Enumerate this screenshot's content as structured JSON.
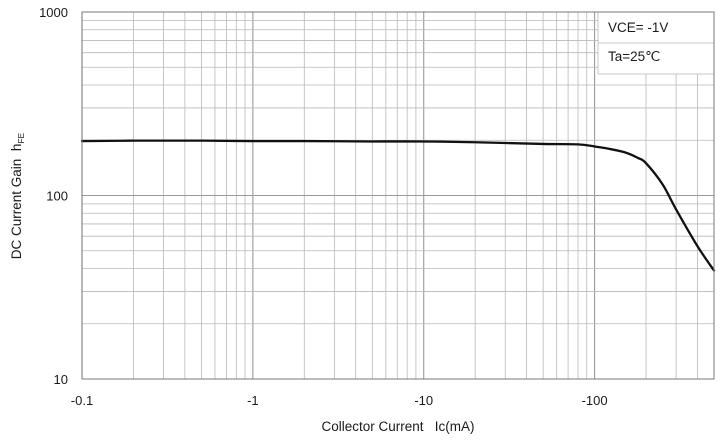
{
  "chart_data": {
    "type": "line",
    "title": "",
    "xlabel": "Collector Current",
    "xlabel_unit": "Ic(mA)",
    "ylabel": "DC Current Gain",
    "ylabel_symbol": "h",
    "ylabel_subscript": "FE",
    "x_scale": "log",
    "y_scale": "log",
    "x_direction": "negative values, magnitude increasing to the right",
    "xlim": [
      -0.1,
      -500
    ],
    "ylim": [
      10,
      1000
    ],
    "x_ticks": [
      -0.1,
      -1,
      -10,
      -100
    ],
    "x_tick_labels": [
      "-0.1",
      "-1",
      "-10",
      "-100"
    ],
    "y_ticks": [
      10,
      100,
      1000
    ],
    "y_tick_labels": [
      "10",
      "100",
      "1000"
    ],
    "grid": true,
    "annotation_position": "top-right",
    "annotations": [
      "VCE= -1V",
      "Ta=25℃"
    ],
    "series": [
      {
        "x": [
          -0.1,
          -0.2,
          -0.5,
          -1,
          -2,
          -5,
          -10,
          -20,
          -50,
          -80,
          -100,
          -120,
          -150,
          -180,
          -200,
          -250,
          -300,
          -400,
          -500
        ],
        "y": [
          198,
          199,
          199,
          198,
          198,
          197,
          197,
          195,
          191,
          190,
          185,
          180,
          172,
          160,
          150,
          115,
          84,
          53,
          39
        ]
      }
    ],
    "colors": {
      "line": "#111111",
      "grid": "#b8b8b8",
      "frame": "#7a7a7a",
      "text": "#1a1a1a"
    }
  }
}
